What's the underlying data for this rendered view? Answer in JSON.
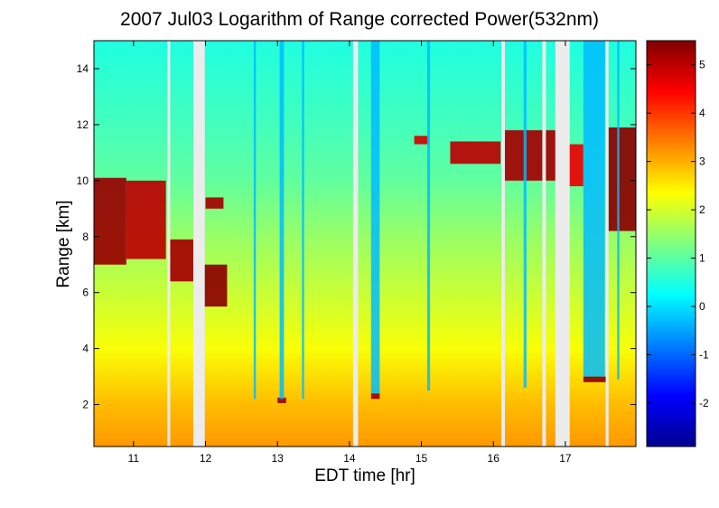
{
  "chart_data": {
    "type": "heatmap",
    "title": "2007 Jul03  Logarithm of Range corrected Power(532nm)",
    "xlabel": "EDT time [hr]",
    "ylabel": "Range [km]",
    "xlim": [
      10.45,
      17.98
    ],
    "ylim": [
      0.5,
      15
    ],
    "x_ticks": [
      "11",
      "12",
      "13",
      "14",
      "15",
      "16",
      "17"
    ],
    "y_ticks": [
      "2",
      "4",
      "6",
      "8",
      "10",
      "12",
      "14"
    ],
    "colorbar": {
      "range": [
        -2.9,
        5.5
      ],
      "ticks": [
        "5",
        "4",
        "3",
        "2",
        "1",
        "0",
        "-1",
        "-2"
      ],
      "colormap": "jet"
    },
    "background_profile": [
      {
        "range": 0.5,
        "value": 3.2
      },
      {
        "range": 2.0,
        "value": 2.9
      },
      {
        "range": 4.0,
        "value": 2.3
      },
      {
        "range": 6.0,
        "value": 1.9
      },
      {
        "range": 8.0,
        "value": 1.5
      },
      {
        "range": 10.0,
        "value": 1.05
      },
      {
        "range": 12.0,
        "value": 0.8
      },
      {
        "range": 15.0,
        "value": 0.5
      }
    ],
    "data_gaps": [
      {
        "start": 11.47,
        "end": 11.51
      },
      {
        "start": 11.83,
        "end": 11.99
      },
      {
        "start": 14.05,
        "end": 14.12
      },
      {
        "start": 16.11,
        "end": 16.16
      },
      {
        "start": 16.68,
        "end": 16.73
      },
      {
        "start": 16.86,
        "end": 17.06
      },
      {
        "start": 17.56,
        "end": 17.6
      }
    ],
    "cloud_layers": [
      {
        "start": 10.45,
        "end": 10.9,
        "base": 7.0,
        "top": 10.1,
        "value": 5.3
      },
      {
        "start": 10.9,
        "end": 11.45,
        "base": 7.2,
        "top": 10.0,
        "value": 5.0
      },
      {
        "start": 11.5,
        "end": 11.9,
        "base": 6.4,
        "top": 7.9,
        "value": 5.2
      },
      {
        "start": 11.98,
        "end": 12.3,
        "base": 5.5,
        "top": 7.0,
        "value": 5.4
      },
      {
        "start": 12.0,
        "end": 12.25,
        "base": 9.0,
        "top": 9.4,
        "value": 5.2
      },
      {
        "start": 14.9,
        "end": 15.1,
        "base": 11.3,
        "top": 11.6,
        "value": 4.8
      },
      {
        "start": 15.4,
        "end": 16.1,
        "base": 10.6,
        "top": 11.4,
        "value": 5.0
      },
      {
        "start": 16.15,
        "end": 16.9,
        "base": 10.0,
        "top": 11.8,
        "value": 5.2
      },
      {
        "start": 16.9,
        "end": 17.25,
        "base": 9.8,
        "top": 11.3,
        "value": 4.6
      },
      {
        "start": 17.6,
        "end": 17.98,
        "base": 8.2,
        "top": 11.9,
        "value": 5.4
      },
      {
        "start": 17.25,
        "end": 17.58,
        "base": 2.8,
        "top": 3.0,
        "value": 5.4
      },
      {
        "start": 14.3,
        "end": 14.42,
        "base": 2.2,
        "top": 2.4,
        "value": 5.2
      },
      {
        "start": 13.0,
        "end": 13.12,
        "base": 2.05,
        "top": 2.25,
        "value": 5.2
      }
    ],
    "attenuated_columns": [
      {
        "start": 12.67,
        "end": 12.7,
        "below": 2.2
      },
      {
        "start": 13.03,
        "end": 13.09,
        "below": 2.2
      },
      {
        "start": 13.34,
        "end": 13.37,
        "below": 2.2
      },
      {
        "start": 14.3,
        "end": 14.42,
        "below": 2.4
      },
      {
        "start": 15.08,
        "end": 15.12,
        "below": 2.5
      },
      {
        "start": 16.42,
        "end": 16.46,
        "below": 2.6
      },
      {
        "start": 17.25,
        "end": 17.55,
        "below": 3.0
      },
      {
        "start": 17.72,
        "end": 17.75,
        "below": 2.9
      }
    ]
  }
}
